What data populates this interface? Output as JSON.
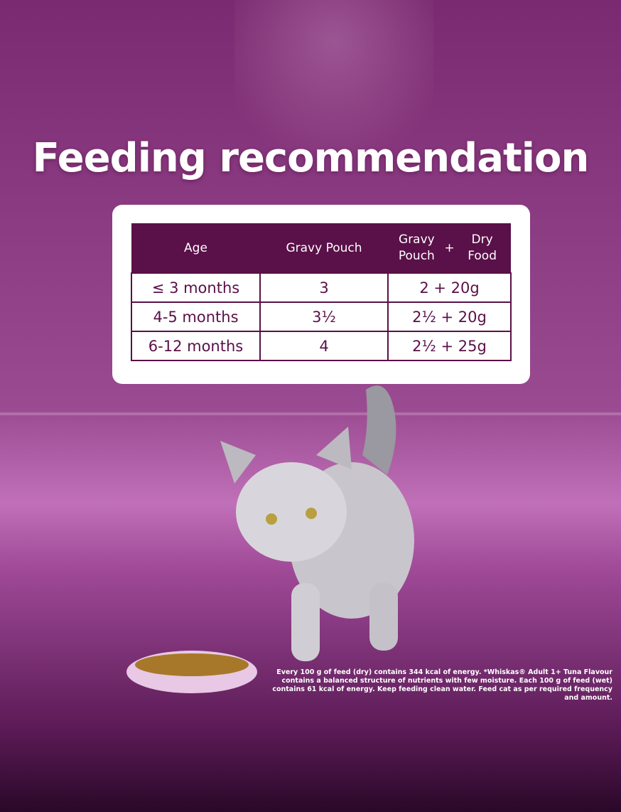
{
  "title": "Feeding recommendation",
  "table": {
    "header": [
      "Age",
      "Gravy Pouch"
    ],
    "combo_header": {
      "left": "Gravy Pouch",
      "joiner": "+",
      "right": "Dry Food"
    },
    "rows": [
      [
        "≤ 3 months",
        "3",
        "2 + 20g"
      ],
      [
        "4-5 months",
        "3½",
        "2½ + 20g"
      ],
      [
        "6-12 months",
        "4",
        "2½ + 25g"
      ]
    ]
  },
  "footnote": "Every 100 g of feed (dry) contains 344 kcal of energy. *Whiskas® Adult 1+ Tuna Flavour contains a balanced structure of nutrients with few moisture. Each 100 g of feed (wet) contains 61 kcal of energy. Keep feeding clean water. Feed cat as per required frequency and amount."
}
